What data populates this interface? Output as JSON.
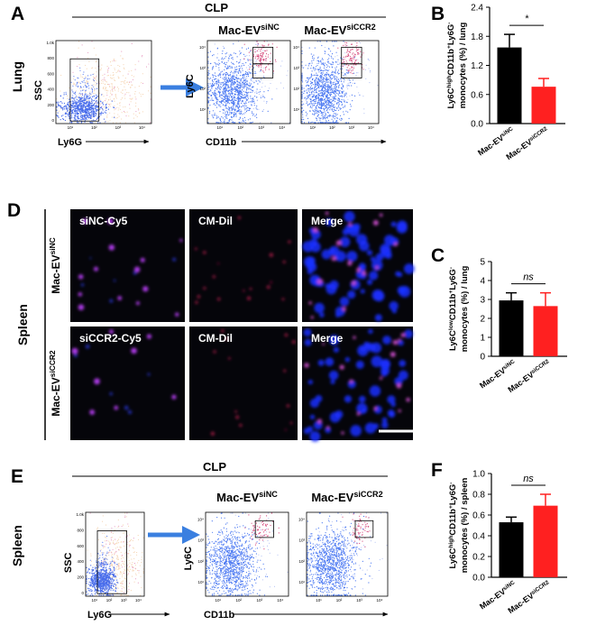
{
  "panel_labels": [
    "A",
    "B",
    "C",
    "D",
    "E",
    "F"
  ],
  "panel_a": {
    "header": "CLP",
    "tissue": "Lung",
    "ssc_axis": "SSC",
    "ly6g_axis": "Ly6G",
    "ly6c_axis": "Ly6C",
    "cd11b_axis": "CD11b",
    "groups": [
      {
        "base": "Mac-EV",
        "sup": "siNC"
      },
      {
        "base": "Mac-EV",
        "sup": "siCCR2"
      }
    ],
    "ssc_ticks": [
      "1.0k",
      "800",
      "600",
      "400",
      "200",
      "0"
    ],
    "log_ticks": [
      "10¹",
      "10²",
      "10³",
      "10⁴"
    ]
  },
  "panel_d": {
    "tissue": "Spleen",
    "rows": [
      {
        "label": {
          "base": "Mac-EV",
          "sup": "siNC"
        },
        "images": [
          "siNC-Cy5",
          "CM-Dil",
          "Merge"
        ]
      },
      {
        "label": {
          "base": "Mac-EV",
          "sup": "siCCR2"
        },
        "images": [
          "siCCR2-Cy5",
          "CM-Dil",
          "Merge"
        ]
      }
    ]
  },
  "panel_e": {
    "header": "CLP",
    "tissue": "Spleen",
    "ssc_axis": "SSC",
    "ly6g_axis": "Ly6G",
    "ly6c_axis": "Ly6C",
    "cd11b_axis": "CD11b",
    "groups": [
      {
        "base": "Mac-EV",
        "sup": "siNC"
      },
      {
        "base": "Mac-EV",
        "sup": "siCCR2"
      }
    ],
    "ssc_ticks": [
      "1.0k",
      "800",
      "600",
      "400",
      "200",
      "0"
    ],
    "log_ticks": [
      "10¹",
      "10²",
      "10³",
      "10⁴"
    ]
  },
  "chart_data": [
    {
      "type": "bar",
      "ylabel": [
        [
          {
            "text": "Ly6C"
          },
          {
            "text": "high",
            "sup": true
          },
          {
            "text": "CD11b"
          },
          {
            "text": "+",
            "sup": true
          },
          {
            "text": "Ly6G"
          },
          {
            "text": "-",
            "sup": true
          }
        ],
        [
          {
            "text": "monocytes (%) / lung"
          }
        ]
      ],
      "categories": [
        "Mac-EV",
        "Mac-EV"
      ],
      "category_sups": [
        "siNC",
        "siCCR2"
      ],
      "values": [
        1.57,
        0.76
      ],
      "errors": [
        0.27,
        0.17
      ],
      "colors": [
        "#000000",
        "#ff2020"
      ],
      "ylim": [
        0,
        2.4
      ],
      "yticks": [
        {
          "value": 0,
          "label": "0.0"
        },
        0.6,
        1.2,
        1.8,
        2.4
      ],
      "significance": "*"
    },
    {
      "type": "bar",
      "ylabel": [
        [
          {
            "text": "Ly6C"
          },
          {
            "text": "low",
            "sup": true
          },
          {
            "text": "CD11b"
          },
          {
            "text": "+",
            "sup": true
          },
          {
            "text": "Ly6G"
          },
          {
            "text": "-",
            "sup": true
          }
        ],
        [
          {
            "text": "monocytes (%) / lung"
          }
        ]
      ],
      "categories": [
        "Mac-EV",
        "Mac-EV"
      ],
      "category_sups": [
        "siNC",
        "siCCR2"
      ],
      "values": [
        2.95,
        2.65
      ],
      "errors": [
        0.4,
        0.7
      ],
      "colors": [
        "#000000",
        "#ff2020"
      ],
      "ylim": [
        0,
        5
      ],
      "yticks": [
        0,
        1,
        2,
        3,
        4,
        5
      ],
      "significance": "ns"
    },
    {
      "type": "bar",
      "ylabel": [
        [
          {
            "text": "Ly6C"
          },
          {
            "text": "high",
            "sup": true
          },
          {
            "text": "CD11b"
          },
          {
            "text": "+",
            "sup": true
          },
          {
            "text": "Ly6G"
          },
          {
            "text": "-",
            "sup": true
          }
        ],
        [
          {
            "text": "monocytes (%) / spleen"
          }
        ]
      ],
      "categories": [
        "Mac-EV",
        "Mac-EV"
      ],
      "category_sups": [
        "siNC",
        "siCCR2"
      ],
      "values": [
        0.53,
        0.69
      ],
      "errors": [
        0.05,
        0.11
      ],
      "colors": [
        "#000000",
        "#ff2020"
      ],
      "ylim": [
        0,
        1.0
      ],
      "yticks": [
        {
          "value": 0,
          "label": "0.0"
        },
        0.2,
        0.4,
        0.6,
        0.8,
        {
          "value": 1.0,
          "label": "1.0"
        }
      ],
      "significance": "ns"
    }
  ]
}
